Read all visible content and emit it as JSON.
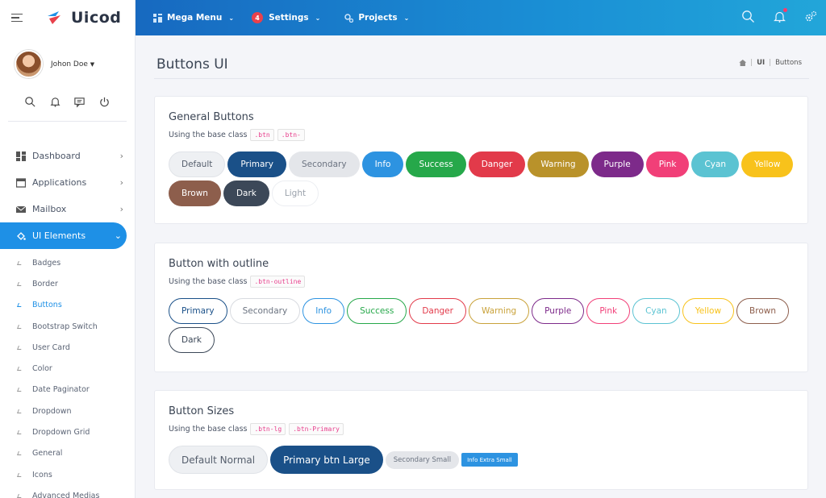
{
  "brand": {
    "name": "Uicod"
  },
  "user": {
    "name": "Johon Doe"
  },
  "nav": {
    "items": [
      {
        "label": "Dashboard",
        "icon": "dashboard-icon"
      },
      {
        "label": "Applications",
        "icon": "window-icon"
      },
      {
        "label": "Mailbox",
        "icon": "mail-icon"
      },
      {
        "label": "UI Elements",
        "icon": "paint-bucket-icon",
        "active": true
      }
    ],
    "sub_items": [
      "Badges",
      "Border",
      "Buttons",
      "Bootstrap Switch",
      "User Card",
      "Color",
      "Date Paginator",
      "Dropdown",
      "Dropdown Grid",
      "General",
      "Icons",
      "Advanced Medias"
    ],
    "current_sub": "Buttons"
  },
  "header": {
    "mega_menu": "Mega Menu",
    "settings": "Settings",
    "settings_badge": "4",
    "projects": "Projects"
  },
  "page": {
    "title": "Buttons UI",
    "breadcrumb": [
      "UI",
      "Buttons"
    ]
  },
  "general": {
    "title": "General Buttons",
    "desc": "Using the base class",
    "codes": [
      ".btn",
      ".btn-"
    ],
    "buttons": [
      {
        "label": "Default",
        "bg": "#eef0f3",
        "fg": "#555e6c",
        "border": "#e0e3e8"
      },
      {
        "label": "Primary",
        "bg": "#1a5088",
        "fg": "#ffffff"
      },
      {
        "label": "Secondary",
        "bg": "#e4e6ea",
        "fg": "#6b7380"
      },
      {
        "label": "Info",
        "bg": "#2d93e1",
        "fg": "#ffffff"
      },
      {
        "label": "Success",
        "bg": "#26a84a",
        "fg": "#ffffff"
      },
      {
        "label": "Danger",
        "bg": "#e23a4a",
        "fg": "#ffffff"
      },
      {
        "label": "Warning",
        "bg": "#b9922a",
        "fg": "#ffffff"
      },
      {
        "label": "Purple",
        "bg": "#7d2a8a",
        "fg": "#ffffff"
      },
      {
        "label": "Pink",
        "bg": "#f13f78",
        "fg": "#ffffff"
      },
      {
        "label": "Cyan",
        "bg": "#5bc3d2",
        "fg": "#ffffff"
      },
      {
        "label": "Yellow",
        "bg": "#f8c21b",
        "fg": "#ffffff"
      },
      {
        "label": "Brown",
        "bg": "#8d5e4c",
        "fg": "#ffffff"
      },
      {
        "label": "Dark",
        "bg": "#3c4858",
        "fg": "#ffffff"
      },
      {
        "label": "Light",
        "bg": "#ffffff",
        "fg": "#9aa1ab",
        "border": "#eceef2"
      }
    ]
  },
  "outline": {
    "title": "Button with outline",
    "desc": "Using the base class",
    "codes": [
      ".btn-outline"
    ],
    "buttons": [
      {
        "label": "Primary",
        "color": "#1a5088"
      },
      {
        "label": "Secondary",
        "color": "#d8dbe0",
        "fg": "#6b7380"
      },
      {
        "label": "Info",
        "color": "#2d93e1"
      },
      {
        "label": "Success",
        "color": "#26a84a"
      },
      {
        "label": "Danger",
        "color": "#e23a4a"
      },
      {
        "label": "Warning",
        "color": "#c9a23a"
      },
      {
        "label": "Purple",
        "color": "#7d2a8a"
      },
      {
        "label": "Pink",
        "color": "#f13f78"
      },
      {
        "label": "Cyan",
        "color": "#5bc3d2"
      },
      {
        "label": "Yellow",
        "color": "#f8c21b"
      },
      {
        "label": "Brown",
        "color": "#8d5e4c"
      },
      {
        "label": "Dark",
        "color": "#3c4858"
      }
    ]
  },
  "sizes": {
    "title": "Button Sizes",
    "desc": "Using the base class",
    "codes": [
      ".btn-lg",
      ".btn-Primary"
    ],
    "buttons": [
      {
        "label": "Default Normal",
        "bg": "#eef0f3",
        "fg": "#555e6c",
        "border": "#e0e3e8",
        "size": "lg"
      },
      {
        "label": "Primary btn Large",
        "bg": "#1a5088",
        "fg": "#ffffff",
        "size": "lg"
      },
      {
        "label": "Secondary Small",
        "bg": "#e4e6ea",
        "fg": "#6b7380",
        "size": "sm"
      },
      {
        "label": "Info Extra Small",
        "bg": "#2d93e1",
        "fg": "#ffffff",
        "size": "xs"
      }
    ]
  }
}
